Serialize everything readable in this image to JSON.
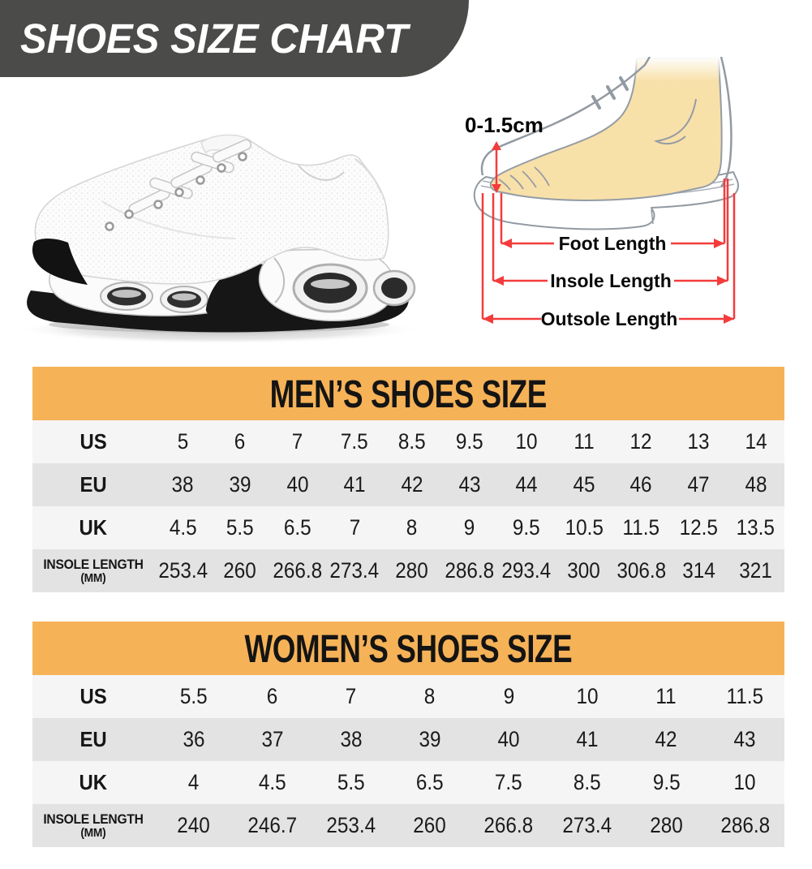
{
  "banner": {
    "title": "SHOES SIZE CHART"
  },
  "foot_diagram": {
    "toe_gap": "0-1.5cm",
    "foot_length": "Foot Length",
    "insole_length": "Insole Length",
    "outsole_length": "Outsole Length"
  },
  "colors": {
    "banner_bg": "#4b4b4a",
    "table_header_bg": "#f6b257",
    "row_light": "#f6f5f6",
    "row_dark": "#e4e3e4",
    "arrow_red": "#f43b3b",
    "foot_skin": "#f8e0a9",
    "outline_gray": "#929aa2"
  },
  "chart_data": [
    {
      "type": "table",
      "title": "MEN’S SHOES SIZE",
      "rows": [
        {
          "label": "US",
          "sub": "",
          "values": [
            "5",
            "6",
            "7",
            "7.5",
            "8.5",
            "9.5",
            "10",
            "11",
            "12",
            "13",
            "14"
          ]
        },
        {
          "label": "EU",
          "sub": "",
          "values": [
            "38",
            "39",
            "40",
            "41",
            "42",
            "43",
            "44",
            "45",
            "46",
            "47",
            "48"
          ]
        },
        {
          "label": "UK",
          "sub": "",
          "values": [
            "4.5",
            "5.5",
            "6.5",
            "7",
            "8",
            "9",
            "9.5",
            "10.5",
            "11.5",
            "12.5",
            "13.5"
          ]
        },
        {
          "label": "INSOLE LENGTH",
          "sub": "(MM)",
          "values": [
            "253.4",
            "260",
            "266.8",
            "273.4",
            "280",
            "286.8",
            "293.4",
            "300",
            "306.8",
            "314",
            "321"
          ]
        }
      ]
    },
    {
      "type": "table",
      "title": "WOMEN’S SHOES SIZE",
      "rows": [
        {
          "label": "US",
          "sub": "",
          "values": [
            "5.5",
            "6",
            "7",
            "8",
            "9",
            "10",
            "11",
            "11.5"
          ]
        },
        {
          "label": "EU",
          "sub": "",
          "values": [
            "36",
            "37",
            "38",
            "39",
            "40",
            "41",
            "42",
            "43"
          ]
        },
        {
          "label": "UK",
          "sub": "",
          "values": [
            "4",
            "4.5",
            "5.5",
            "6.5",
            "7.5",
            "8.5",
            "9.5",
            "10"
          ]
        },
        {
          "label": "INSOLE LENGTH",
          "sub": "(MM)",
          "values": [
            "240",
            "246.7",
            "253.4",
            "260",
            "266.8",
            "273.4",
            "280",
            "286.8"
          ]
        }
      ]
    }
  ]
}
